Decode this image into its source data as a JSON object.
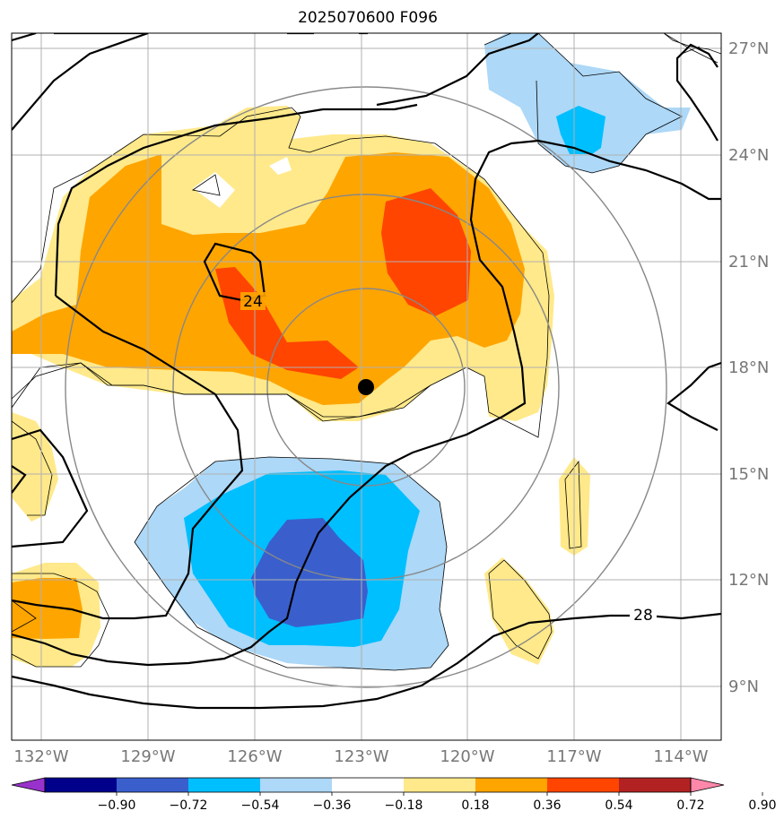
{
  "title": "2025070600 F096",
  "axes": {
    "lon_labels": [
      "132°W",
      "129°W",
      "126°W",
      "123°W",
      "120°W",
      "117°W",
      "114°W"
    ],
    "lat_labels": [
      "27°N",
      "24°N",
      "21°N",
      "18°N",
      "15°N",
      "12°N",
      "9°N"
    ]
  },
  "contour_labels": [
    "24",
    "28"
  ],
  "colorbar": {
    "ticks": [
      "−0.90",
      "−0.72",
      "−0.54",
      "−0.36",
      "−0.18",
      "0.18",
      "0.36",
      "0.54",
      "0.72",
      "0.90"
    ],
    "colors": [
      "#9932cc",
      "#00008b",
      "#3a5fcd",
      "#00bfff",
      "#add8f7",
      "#ffffff",
      "#ffe98a",
      "#ffa500",
      "#ff4500",
      "#b22222",
      "#ff88aa"
    ]
  }
}
